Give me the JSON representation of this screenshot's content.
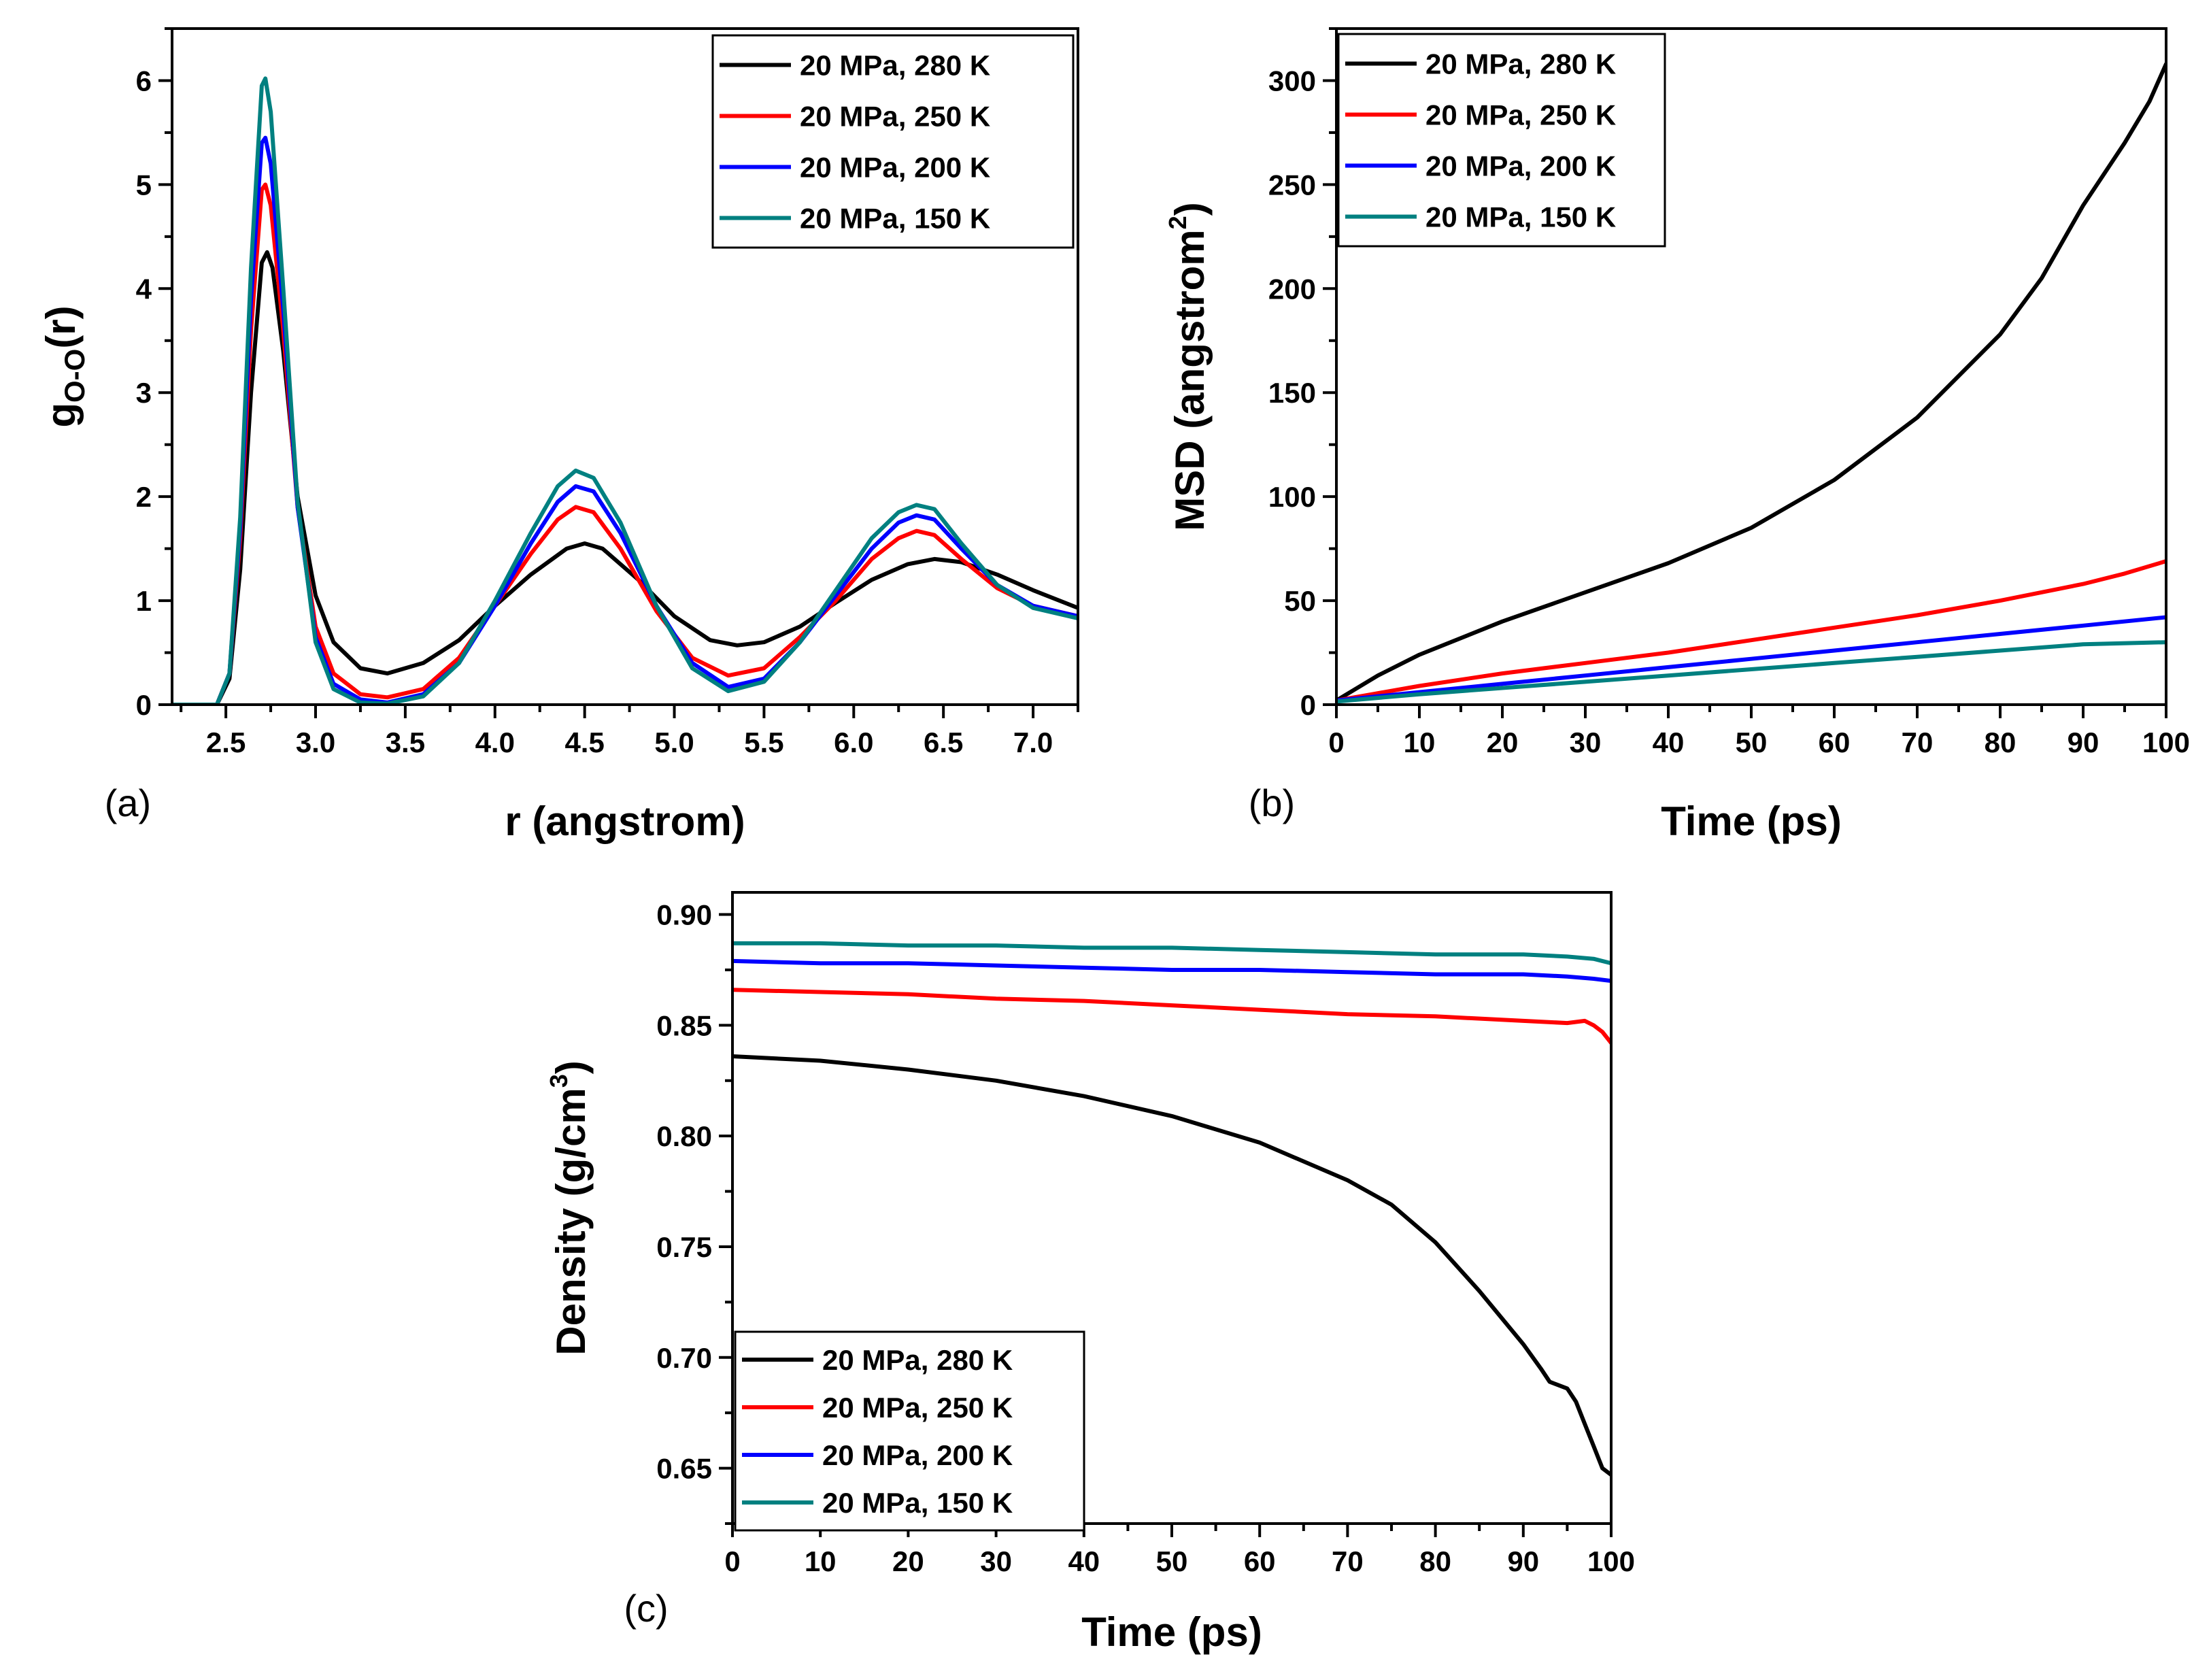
{
  "figure_title": "",
  "colors": {
    "280K": "#000000",
    "250K": "#ff0000",
    "200K": "#0000ff",
    "150K": "#008080"
  },
  "chart_data": [
    {
      "id": "a",
      "type": "line",
      "panel_label": "(a)",
      "title": "",
      "xlabel": "r (angstrom)",
      "ylabel_main": "g",
      "ylabel_sub": "O-O",
      "ylabel_tail": "(r)",
      "xlim": [
        2.2,
        7.25
      ],
      "ylim": [
        0,
        6.5
      ],
      "xticks": [
        2.5,
        3.0,
        3.5,
        4.0,
        4.5,
        5.0,
        5.5,
        6.0,
        6.5,
        7.0
      ],
      "xtick_labels": [
        "2.5",
        "3.0",
        "3.5",
        "4.0",
        "4.5",
        "5.0",
        "5.5",
        "6.0",
        "6.5",
        "7.0"
      ],
      "yticks": [
        0,
        1,
        2,
        3,
        4,
        5,
        6
      ],
      "ytick_labels": [
        "0",
        "1",
        "2",
        "3",
        "4",
        "5",
        "6"
      ],
      "legend_position": "top-right",
      "series": [
        {
          "name": "20 MPa, 280 K",
          "color_key": "280K",
          "x": [
            2.2,
            2.45,
            2.52,
            2.58,
            2.64,
            2.7,
            2.73,
            2.76,
            2.82,
            2.9,
            3.0,
            3.1,
            3.25,
            3.4,
            3.6,
            3.8,
            4.0,
            4.2,
            4.4,
            4.5,
            4.6,
            4.8,
            5.0,
            5.2,
            5.35,
            5.5,
            5.7,
            5.9,
            6.1,
            6.3,
            6.45,
            6.6,
            6.8,
            7.0,
            7.25
          ],
          "y": [
            0,
            0,
            0.25,
            1.3,
            3.0,
            4.25,
            4.35,
            4.2,
            3.4,
            2.0,
            1.05,
            0.6,
            0.35,
            0.3,
            0.4,
            0.62,
            0.95,
            1.25,
            1.5,
            1.55,
            1.5,
            1.2,
            0.85,
            0.62,
            0.57,
            0.6,
            0.75,
            0.98,
            1.2,
            1.35,
            1.4,
            1.37,
            1.25,
            1.1,
            0.93
          ]
        },
        {
          "name": "20 MPa, 250 K",
          "color_key": "250K",
          "x": [
            2.2,
            2.45,
            2.52,
            2.58,
            2.64,
            2.7,
            2.72,
            2.75,
            2.82,
            2.9,
            3.0,
            3.1,
            3.25,
            3.4,
            3.6,
            3.8,
            4.0,
            4.2,
            4.35,
            4.45,
            4.55,
            4.7,
            4.9,
            5.1,
            5.3,
            5.5,
            5.7,
            5.9,
            6.1,
            6.25,
            6.35,
            6.45,
            6.6,
            6.8,
            7.0,
            7.25
          ],
          "y": [
            0,
            0,
            0.3,
            1.6,
            3.6,
            4.95,
            5.0,
            4.8,
            3.6,
            1.9,
            0.75,
            0.3,
            0.1,
            0.07,
            0.15,
            0.45,
            0.95,
            1.45,
            1.78,
            1.9,
            1.85,
            1.5,
            0.9,
            0.45,
            0.28,
            0.35,
            0.65,
            1.0,
            1.4,
            1.6,
            1.67,
            1.63,
            1.4,
            1.12,
            0.95,
            0.85
          ]
        },
        {
          "name": "20 MPa, 200 K",
          "color_key": "200K",
          "x": [
            2.2,
            2.45,
            2.52,
            2.58,
            2.64,
            2.7,
            2.72,
            2.75,
            2.82,
            2.9,
            3.0,
            3.1,
            3.25,
            3.4,
            3.6,
            3.8,
            4.0,
            4.2,
            4.35,
            4.45,
            4.55,
            4.7,
            4.9,
            5.1,
            5.3,
            5.5,
            5.7,
            5.9,
            6.1,
            6.25,
            6.35,
            6.45,
            6.6,
            6.8,
            7.0,
            7.25
          ],
          "y": [
            0,
            0,
            0.3,
            1.7,
            3.9,
            5.4,
            5.45,
            5.2,
            3.8,
            1.9,
            0.65,
            0.2,
            0.05,
            0.02,
            0.1,
            0.4,
            0.95,
            1.55,
            1.95,
            2.1,
            2.05,
            1.65,
            0.95,
            0.4,
            0.17,
            0.25,
            0.6,
            1.05,
            1.5,
            1.75,
            1.82,
            1.78,
            1.5,
            1.15,
            0.95,
            0.85
          ]
        },
        {
          "name": "20 MPa, 150 K",
          "color_key": "150K",
          "x": [
            2.2,
            2.45,
            2.52,
            2.58,
            2.64,
            2.7,
            2.72,
            2.75,
            2.82,
            2.9,
            3.0,
            3.1,
            3.25,
            3.4,
            3.6,
            3.8,
            4.0,
            4.2,
            4.35,
            4.45,
            4.55,
            4.7,
            4.9,
            5.1,
            5.3,
            5.5,
            5.7,
            5.9,
            6.1,
            6.25,
            6.35,
            6.45,
            6.6,
            6.8,
            7.0,
            7.25
          ],
          "y": [
            0,
            0,
            0.3,
            1.8,
            4.2,
            5.95,
            6.02,
            5.7,
            4.0,
            1.95,
            0.6,
            0.15,
            0.02,
            0.01,
            0.08,
            0.4,
            1.0,
            1.65,
            2.1,
            2.25,
            2.18,
            1.75,
            0.95,
            0.35,
            0.13,
            0.22,
            0.6,
            1.1,
            1.6,
            1.85,
            1.92,
            1.88,
            1.55,
            1.15,
            0.93,
            0.83
          ]
        }
      ]
    },
    {
      "id": "b",
      "type": "line",
      "panel_label": "(b)",
      "title": "",
      "xlabel": "Time (ps)",
      "ylabel_main": "MSD (angstrom",
      "ylabel_sup": "2",
      "ylabel_tail": ")",
      "xlim": [
        0,
        100
      ],
      "ylim": [
        0,
        325
      ],
      "xticks": [
        0,
        10,
        20,
        30,
        40,
        50,
        60,
        70,
        80,
        90,
        100
      ],
      "xtick_labels": [
        "0",
        "10",
        "20",
        "30",
        "40",
        "50",
        "60",
        "70",
        "80",
        "90",
        "100"
      ],
      "yticks": [
        0,
        50,
        100,
        150,
        200,
        250,
        300
      ],
      "ytick_labels": [
        "0",
        "50",
        "100",
        "150",
        "200",
        "250",
        "300"
      ],
      "legend_position": "top-left",
      "series": [
        {
          "name": "20 MPa, 280 K",
          "color_key": "280K",
          "x": [
            0,
            5,
            10,
            20,
            30,
            40,
            50,
            60,
            70,
            80,
            85,
            90,
            95,
            98,
            100
          ],
          "y": [
            2,
            14,
            24,
            40,
            54,
            68,
            85,
            108,
            138,
            178,
            205,
            240,
            270,
            290,
            308
          ]
        },
        {
          "name": "20 MPa, 250 K",
          "color_key": "250K",
          "x": [
            0,
            10,
            20,
            30,
            40,
            50,
            60,
            70,
            80,
            90,
            95,
            100
          ],
          "y": [
            2,
            9,
            15,
            20,
            25,
            31,
            37,
            43,
            50,
            58,
            63,
            69
          ]
        },
        {
          "name": "20 MPa, 200 K",
          "color_key": "200K",
          "x": [
            0,
            10,
            20,
            30,
            40,
            50,
            60,
            70,
            80,
            90,
            100
          ],
          "y": [
            2,
            6,
            10,
            14,
            18,
            22,
            26,
            30,
            34,
            38,
            42
          ]
        },
        {
          "name": "20 MPa, 150 K",
          "color_key": "150K",
          "x": [
            0,
            10,
            20,
            30,
            40,
            50,
            60,
            70,
            80,
            90,
            100
          ],
          "y": [
            1.5,
            5,
            8,
            11,
            14,
            17,
            20,
            23,
            26,
            29,
            30
          ]
        }
      ]
    },
    {
      "id": "c",
      "type": "line",
      "panel_label": "(c)",
      "title": "",
      "xlabel": "Time (ps)",
      "ylabel_main": "Density (g/cm",
      "ylabel_sup": "3",
      "ylabel_tail": ")",
      "xlim": [
        0,
        100
      ],
      "ylim": [
        0.625,
        0.91
      ],
      "xticks": [
        0,
        10,
        20,
        30,
        40,
        50,
        60,
        70,
        80,
        90,
        100
      ],
      "xtick_labels": [
        "0",
        "10",
        "20",
        "30",
        "40",
        "50",
        "60",
        "70",
        "80",
        "90",
        "100"
      ],
      "yticks": [
        0.65,
        0.7,
        0.75,
        0.8,
        0.85,
        0.9
      ],
      "ytick_labels": [
        "0.65",
        "0.70",
        "0.75",
        "0.80",
        "0.85",
        "0.90"
      ],
      "legend_position": "bottom-left",
      "series": [
        {
          "name": "20 MPa, 280 K",
          "color_key": "280K",
          "x": [
            0,
            10,
            20,
            30,
            40,
            50,
            60,
            70,
            75,
            80,
            85,
            90,
            92,
            93,
            95,
            96,
            97,
            98,
            99,
            100
          ],
          "y": [
            0.836,
            0.834,
            0.83,
            0.825,
            0.818,
            0.809,
            0.797,
            0.78,
            0.769,
            0.752,
            0.73,
            0.706,
            0.695,
            0.689,
            0.686,
            0.68,
            0.67,
            0.66,
            0.65,
            0.647
          ]
        },
        {
          "name": "20 MPa, 250 K",
          "color_key": "250K",
          "x": [
            0,
            10,
            20,
            30,
            40,
            50,
            60,
            70,
            80,
            90,
            95,
            97,
            98,
            99,
            100
          ],
          "y": [
            0.866,
            0.865,
            0.864,
            0.862,
            0.861,
            0.859,
            0.857,
            0.855,
            0.854,
            0.852,
            0.851,
            0.852,
            0.85,
            0.847,
            0.842
          ]
        },
        {
          "name": "20 MPa, 200 K",
          "color_key": "200K",
          "x": [
            0,
            10,
            20,
            30,
            40,
            50,
            60,
            70,
            80,
            90,
            95,
            98,
            100
          ],
          "y": [
            0.879,
            0.878,
            0.878,
            0.877,
            0.876,
            0.875,
            0.875,
            0.874,
            0.873,
            0.873,
            0.872,
            0.871,
            0.87
          ]
        },
        {
          "name": "20 MPa, 150 K",
          "color_key": "150K",
          "x": [
            0,
            10,
            20,
            30,
            40,
            50,
            60,
            70,
            80,
            90,
            95,
            98,
            100
          ],
          "y": [
            0.887,
            0.887,
            0.886,
            0.886,
            0.885,
            0.885,
            0.884,
            0.883,
            0.882,
            0.882,
            0.881,
            0.88,
            0.878
          ]
        }
      ]
    }
  ]
}
